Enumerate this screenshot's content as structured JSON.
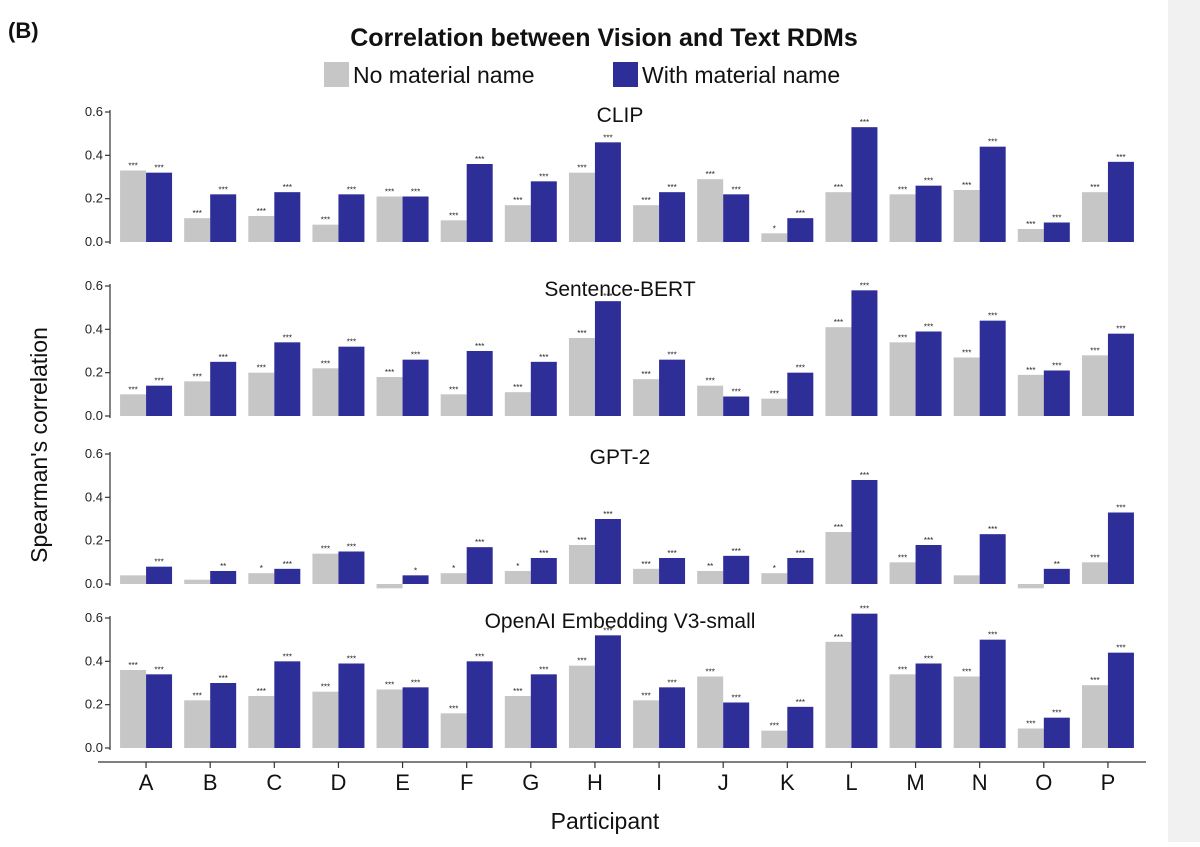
{
  "panel_label": "(B)",
  "chart_data": {
    "type": "bar",
    "title": "Correlation between Vision and Text RDMs",
    "xlabel": "Participant",
    "ylabel": "Spearman's correlation",
    "ylim": [
      0,
      0.6
    ],
    "yticks": [
      "0.0",
      "0.2",
      "0.4",
      "0.6"
    ],
    "legend_position": "top-center",
    "colors": {
      "No material name": "#c6c6c6",
      "With material name": "#2e2e99"
    },
    "categories": [
      "A",
      "B",
      "C",
      "D",
      "E",
      "F",
      "G",
      "H",
      "I",
      "J",
      "K",
      "L",
      "M",
      "N",
      "O",
      "P"
    ],
    "panels": [
      {
        "title": "CLIP",
        "series": [
          {
            "name": "No material name",
            "values": [
              0.33,
              0.11,
              0.12,
              0.08,
              0.21,
              0.1,
              0.17,
              0.32,
              0.17,
              0.29,
              0.04,
              0.23,
              0.22,
              0.24,
              0.06,
              0.23
            ],
            "sig": [
              "***",
              "***",
              "***",
              "***",
              "***",
              "***",
              "***",
              "***",
              "***",
              "***",
              "*",
              "***",
              "***",
              "***",
              "***",
              "***"
            ]
          },
          {
            "name": "With material name",
            "values": [
              0.32,
              0.22,
              0.23,
              0.22,
              0.21,
              0.36,
              0.28,
              0.46,
              0.23,
              0.22,
              0.11,
              0.53,
              0.26,
              0.44,
              0.09,
              0.37
            ],
            "sig": [
              "***",
              "***",
              "***",
              "***",
              "***",
              "***",
              "***",
              "***",
              "***",
              "***",
              "***",
              "***",
              "***",
              "***",
              "***",
              "***"
            ]
          }
        ]
      },
      {
        "title": "Sentence-BERT",
        "series": [
          {
            "name": "No material name",
            "values": [
              0.1,
              0.16,
              0.2,
              0.22,
              0.18,
              0.1,
              0.11,
              0.36,
              0.17,
              0.14,
              0.08,
              0.41,
              0.34,
              0.27,
              0.19,
              0.28
            ],
            "sig": [
              "***",
              "***",
              "***",
              "***",
              "***",
              "***",
              "***",
              "***",
              "***",
              "***",
              "***",
              "***",
              "***",
              "***",
              "***",
              "***"
            ]
          },
          {
            "name": "With material name",
            "values": [
              0.14,
              0.25,
              0.34,
              0.32,
              0.26,
              0.3,
              0.25,
              0.53,
              0.26,
              0.09,
              0.2,
              0.58,
              0.39,
              0.44,
              0.21,
              0.38
            ],
            "sig": [
              "***",
              "***",
              "***",
              "***",
              "***",
              "***",
              "***",
              "***",
              "***",
              "***",
              "***",
              "***",
              "***",
              "***",
              "***",
              "***"
            ]
          }
        ]
      },
      {
        "title": "GPT-2",
        "series": [
          {
            "name": "No material name",
            "values": [
              0.04,
              0.02,
              0.05,
              0.14,
              -0.02,
              0.05,
              0.06,
              0.18,
              0.07,
              0.06,
              0.05,
              0.24,
              0.1,
              0.04,
              -0.02,
              0.1
            ],
            "sig": [
              "",
              "",
              "*",
              "***",
              "",
              "*",
              "*",
              "***",
              "***",
              "**",
              "*",
              "***",
              "***",
              "",
              "",
              "***"
            ]
          },
          {
            "name": "With material name",
            "values": [
              0.08,
              0.06,
              0.07,
              0.15,
              0.04,
              0.17,
              0.12,
              0.3,
              0.12,
              0.13,
              0.12,
              0.48,
              0.18,
              0.23,
              0.07,
              0.33
            ],
            "sig": [
              "***",
              "**",
              "***",
              "***",
              "*",
              "***",
              "***",
              "***",
              "***",
              "***",
              "***",
              "***",
              "***",
              "***",
              "**",
              "***"
            ]
          }
        ]
      },
      {
        "title": "OpenAI Embedding V3-small",
        "series": [
          {
            "name": "No material name",
            "values": [
              0.36,
              0.22,
              0.24,
              0.26,
              0.27,
              0.16,
              0.24,
              0.38,
              0.22,
              0.33,
              0.08,
              0.49,
              0.34,
              0.33,
              0.09,
              0.29
            ],
            "sig": [
              "***",
              "***",
              "***",
              "***",
              "***",
              "***",
              "***",
              "***",
              "***",
              "***",
              "***",
              "***",
              "***",
              "***",
              "***",
              "***"
            ]
          },
          {
            "name": "With material name",
            "values": [
              0.34,
              0.3,
              0.4,
              0.39,
              0.28,
              0.4,
              0.34,
              0.52,
              0.28,
              0.21,
              0.19,
              0.62,
              0.39,
              0.5,
              0.14,
              0.44
            ],
            "sig": [
              "***",
              "***",
              "***",
              "***",
              "***",
              "***",
              "***",
              "***",
              "***",
              "***",
              "***",
              "***",
              "***",
              "***",
              "***",
              "***"
            ]
          }
        ]
      }
    ]
  }
}
